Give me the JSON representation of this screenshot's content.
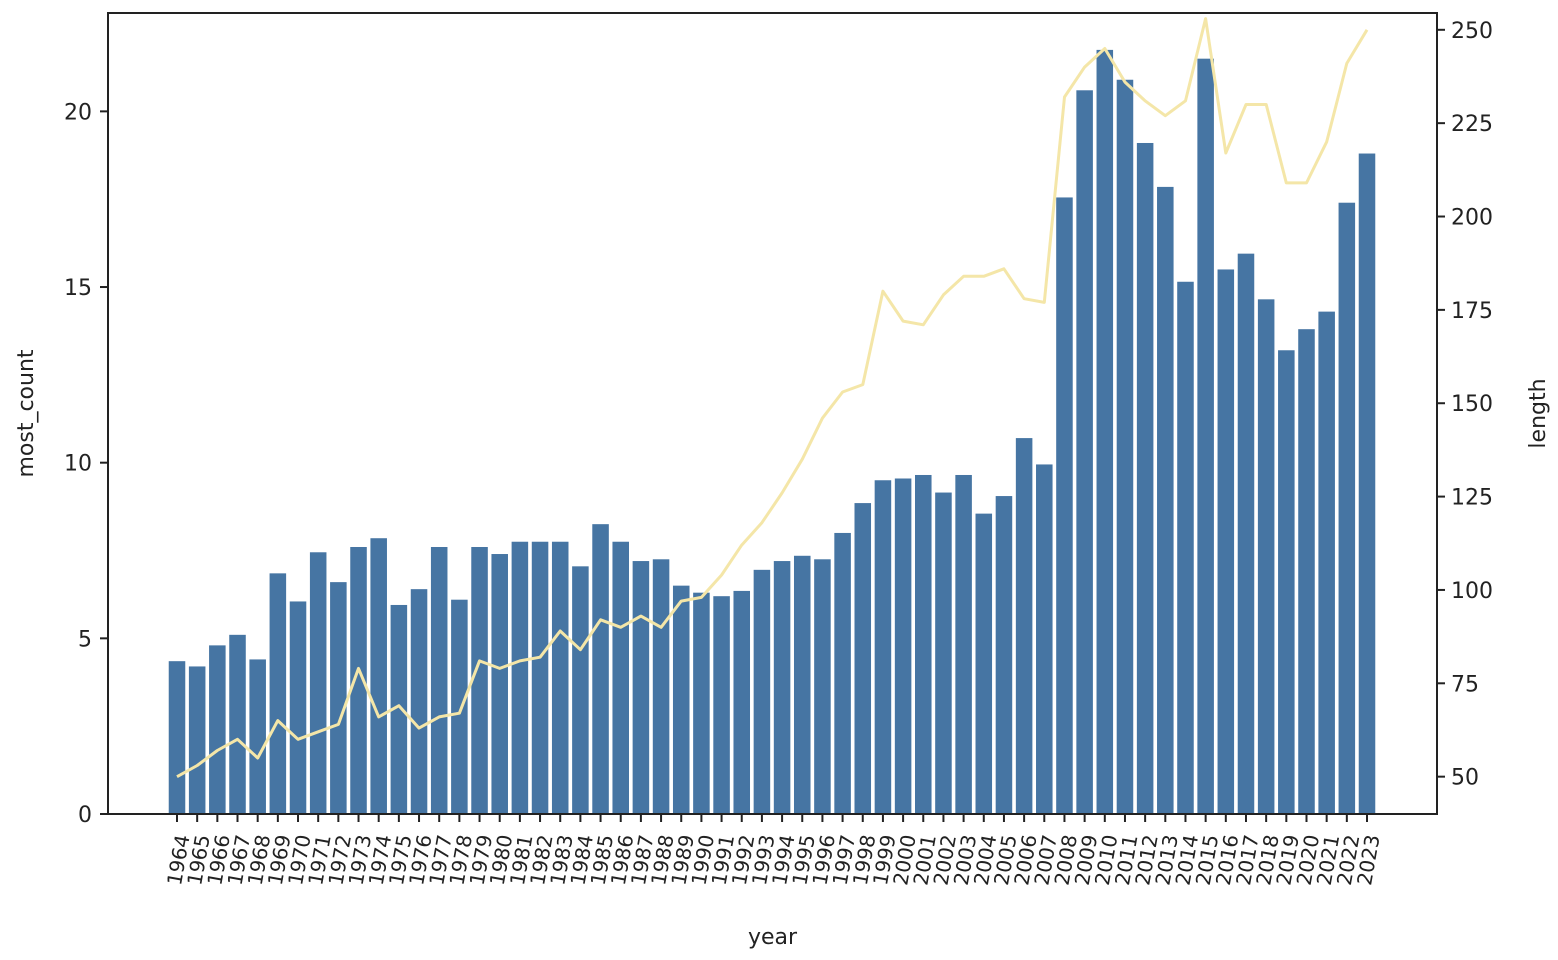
{
  "chart_data": {
    "type": "bar",
    "xlabel": "year",
    "ylabel": "most_count",
    "y2label": "length",
    "ylim": [
      0,
      22.8
    ],
    "y2lim": [
      40,
      254.5
    ],
    "yticks": [
      0,
      5,
      10,
      15,
      20
    ],
    "y2ticks": [
      50,
      75,
      100,
      125,
      150,
      175,
      200,
      225,
      250
    ],
    "bar_color": "#4675a3",
    "line_color": "#f4e6a8",
    "categories": [
      "1964",
      "1965",
      "1966",
      "1967",
      "1968",
      "1969",
      "1970",
      "1971",
      "1972",
      "1973",
      "1974",
      "1975",
      "1976",
      "1977",
      "1978",
      "1979",
      "1980",
      "1981",
      "1982",
      "1983",
      "1984",
      "1985",
      "1986",
      "1987",
      "1988",
      "1989",
      "1990",
      "1991",
      "1992",
      "1993",
      "1994",
      "1995",
      "1996",
      "1997",
      "1998",
      "1999",
      "2000",
      "2001",
      "2002",
      "2003",
      "2004",
      "2005",
      "2006",
      "2007",
      "2008",
      "2009",
      "2010",
      "2011",
      "2012",
      "2013",
      "2014",
      "2015",
      "2016",
      "2017",
      "2018",
      "2019",
      "2020",
      "2021",
      "2022",
      "2023"
    ],
    "series": [
      {
        "kind": "bar",
        "axis": "left",
        "values": [
          4.35,
          4.2,
          4.8,
          5.1,
          4.4,
          6.85,
          6.05,
          7.45,
          6.6,
          7.6,
          7.85,
          5.95,
          6.4,
          7.6,
          6.1,
          7.6,
          7.4,
          7.75,
          7.75,
          7.75,
          7.05,
          8.25,
          7.75,
          7.2,
          7.25,
          6.5,
          6.3,
          6.2,
          6.35,
          6.95,
          7.2,
          7.35,
          7.25,
          8.0,
          8.85,
          9.5,
          9.55,
          9.65,
          9.15,
          9.65,
          8.55,
          9.05,
          10.7,
          9.95,
          17.55,
          20.6,
          21.75,
          20.9,
          19.1,
          17.85,
          15.15,
          21.5,
          15.5,
          15.95,
          14.65,
          13.2,
          13.8,
          14.3,
          17.4,
          18.8
        ]
      },
      {
        "kind": "line",
        "axis": "right",
        "values": [
          50,
          53,
          57,
          60,
          55,
          65,
          60,
          62,
          64,
          79,
          66,
          69,
          63,
          66,
          67,
          81,
          79,
          81,
          82,
          89,
          84,
          92,
          90,
          93,
          90,
          97,
          98,
          104,
          112,
          118,
          126,
          135,
          146,
          153,
          155,
          180,
          172,
          171,
          179,
          184,
          184,
          186,
          178,
          177,
          232,
          240,
          245,
          236,
          231,
          227,
          231,
          253,
          217,
          230,
          230,
          209,
          209,
          220,
          241,
          250
        ]
      }
    ]
  }
}
